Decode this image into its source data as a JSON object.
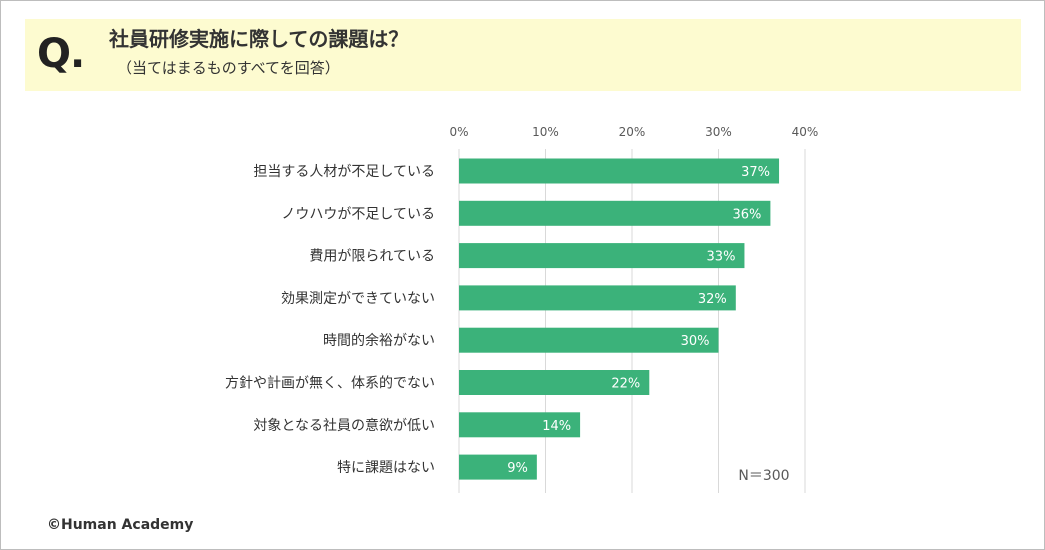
{
  "question": {
    "mark": "Q.",
    "title": "社員研修実施に際しての課題は？",
    "subtitle": "（当てはまるものすべてを回答）"
  },
  "chart_data": {
    "type": "bar",
    "orientation": "horizontal",
    "categories": [
      "担当する人材が不足している",
      "ノウハウが不足している",
      "費用が限られている",
      "効果測定ができていない",
      "時間的余裕がない",
      "方針や計画が無く、体系的でない",
      "対象となる社員の意欲が低い",
      "特に課題はない"
    ],
    "values": [
      37,
      36,
      33,
      32,
      30,
      22,
      14,
      9
    ],
    "value_labels": [
      "37%",
      "36%",
      "33%",
      "32%",
      "30%",
      "22%",
      "14%",
      "9%"
    ],
    "xlim": [
      0,
      40
    ],
    "xticks": [
      0,
      10,
      20,
      30,
      40
    ],
    "xtick_labels": [
      "0%",
      "10%",
      "20%",
      "30%",
      "40%"
    ],
    "grid": true,
    "bar_color": "#3bb27a",
    "sample_size_label": "N＝300"
  },
  "footer": {
    "copyright": "©Human Academy"
  }
}
